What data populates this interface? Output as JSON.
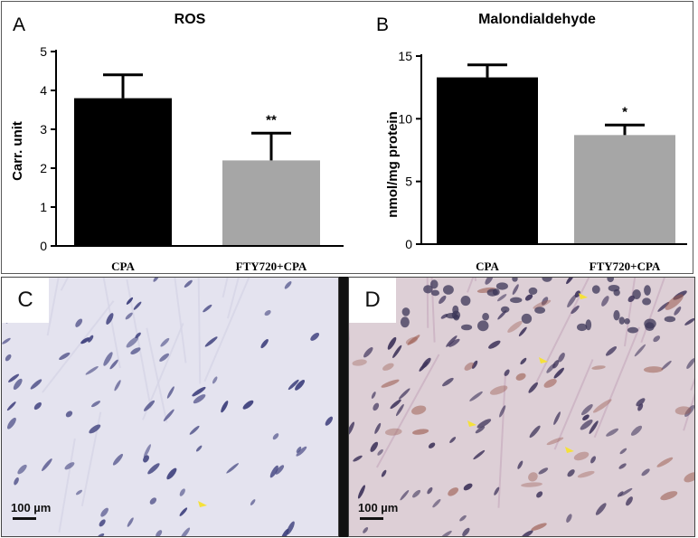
{
  "chart_data": [
    {
      "type": "bar",
      "panel": "A",
      "title": "ROS",
      "ylabel": "Carr. unit",
      "xlabel": "",
      "categories": [
        "CPA",
        "FTY720+CPA"
      ],
      "values": [
        3.8,
        2.2
      ],
      "errors": [
        0.6,
        0.7
      ],
      "significance": [
        "",
        "**"
      ],
      "ylim": [
        0,
        5
      ],
      "yticks": [
        "0",
        "1",
        "2",
        "3",
        "4",
        "5"
      ],
      "colors": [
        "#000000",
        "#a6a6a6"
      ]
    },
    {
      "type": "bar",
      "panel": "B",
      "title": "Malondialdehyde",
      "ylabel": "nmol/mg protein",
      "xlabel": "",
      "categories": [
        "CPA",
        "FTY720+CPA"
      ],
      "values": [
        13.3,
        8.7
      ],
      "errors": [
        1.0,
        0.8
      ],
      "significance": [
        "",
        "*"
      ],
      "ylim": [
        0,
        15
      ],
      "yticks": [
        "0",
        "5",
        "10",
        "15"
      ],
      "colors": [
        "#000000",
        "#a6a6a6"
      ]
    }
  ],
  "micrographs": [
    {
      "panel": "C",
      "scale": "100 µm",
      "background": "#e4e3ef",
      "nucleus_color": "#3d3f7c"
    },
    {
      "panel": "D",
      "scale": "100 µm",
      "background": "#ddcfd6",
      "nucleus_color": "#40355c"
    }
  ]
}
